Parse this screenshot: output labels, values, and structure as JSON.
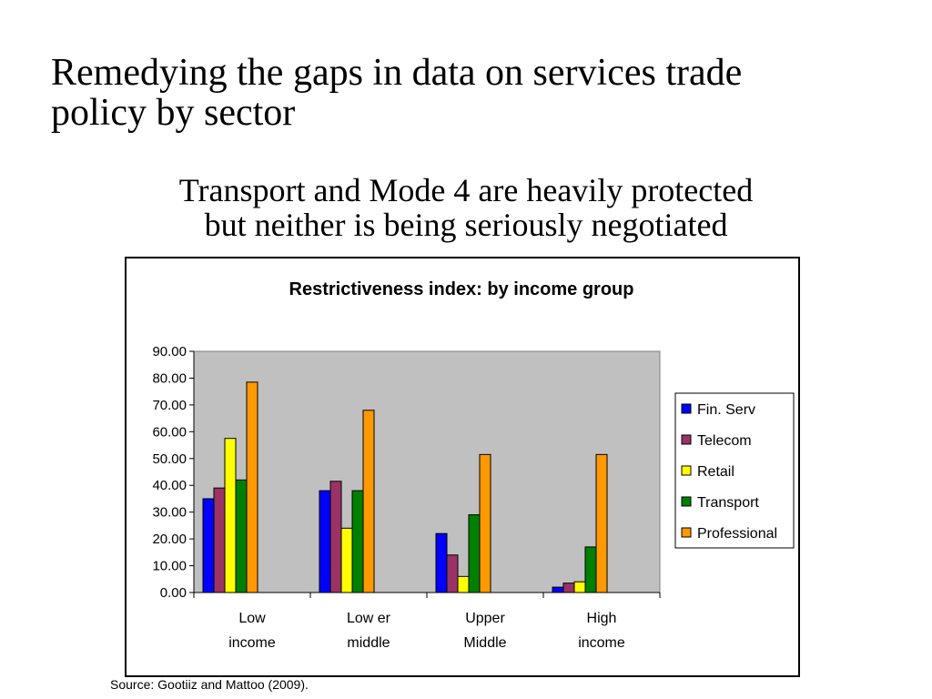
{
  "slide": {
    "title_lines": [
      "Remedying the gaps in data on services trade",
      "policy by sector"
    ],
    "subtitle_lines": [
      "Transport and Mode 4 are heavily protected",
      "but neither is being seriously negotiated"
    ],
    "source": "Source: Gootiiz and Mattoo (2009)."
  },
  "chart_data": {
    "type": "bar",
    "title": "Restrictiveness index: by income group",
    "xlabel": "",
    "ylabel": "",
    "categories": [
      [
        "Low",
        "income"
      ],
      [
        "Low er",
        "middle"
      ],
      [
        "Upper",
        "Middle"
      ],
      [
        "High",
        "income"
      ]
    ],
    "series": [
      {
        "name": "Fin. Serv",
        "color": "#0000ff",
        "values": [
          35.0,
          38.0,
          22.0,
          2.0
        ]
      },
      {
        "name": "Telecom",
        "color": "#993366",
        "values": [
          39.0,
          41.5,
          14.0,
          3.5
        ]
      },
      {
        "name": "Retail",
        "color": "#ffff00",
        "values": [
          57.5,
          24.0,
          6.0,
          4.0
        ]
      },
      {
        "name": "Transport",
        "color": "#008000",
        "values": [
          42.0,
          38.0,
          29.0,
          17.0
        ]
      },
      {
        "name": "Professional",
        "color": "#ff9900",
        "values": [
          78.5,
          68.0,
          51.5,
          51.5
        ]
      }
    ],
    "ylim": [
      0,
      90
    ],
    "yticks": [
      "0.00",
      "10.00",
      "20.00",
      "30.00",
      "40.00",
      "50.00",
      "60.00",
      "70.00",
      "80.00",
      "90.00"
    ],
    "grid": false,
    "plot_background": "#c0c0c0",
    "legend_position": "right"
  }
}
